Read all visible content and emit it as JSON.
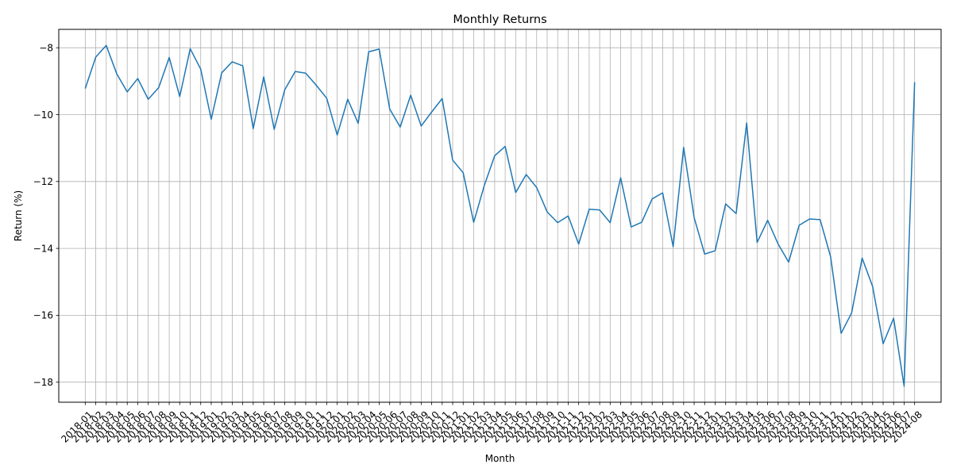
{
  "chart_data": {
    "type": "line",
    "title": "Monthly Returns",
    "xlabel": "Month",
    "ylabel": "Return (%)",
    "grid": true,
    "ylim": [
      -18.6,
      -7.45
    ],
    "yticks": [
      -18,
      -16,
      -14,
      -12,
      -10,
      -8
    ],
    "ytick_labels": [
      "−18",
      "−16",
      "−14",
      "−12",
      "−10",
      "−8"
    ],
    "x_tick_rotation": 45,
    "line_color": "#1f77b4",
    "grid_color": "#b0b0b0",
    "x": [
      "2018-01",
      "2018-02",
      "2018-03",
      "2018-04",
      "2018-05",
      "2018-06",
      "2018-07",
      "2018-08",
      "2018-09",
      "2018-10",
      "2018-11",
      "2018-12",
      "2019-01",
      "2019-02",
      "2019-03",
      "2019-04",
      "2019-05",
      "2019-06",
      "2019-07",
      "2019-08",
      "2019-09",
      "2019-10",
      "2019-11",
      "2019-12",
      "2020-01",
      "2020-02",
      "2020-03",
      "2020-04",
      "2020-05",
      "2020-06",
      "2020-07",
      "2020-08",
      "2020-09",
      "2020-10",
      "2020-11",
      "2020-12",
      "2021-01",
      "2021-02",
      "2021-03",
      "2021-04",
      "2021-05",
      "2021-06",
      "2021-07",
      "2021-08",
      "2021-09",
      "2021-10",
      "2021-11",
      "2021-12",
      "2022-01",
      "2022-02",
      "2022-03",
      "2022-04",
      "2022-05",
      "2022-06",
      "2022-07",
      "2022-08",
      "2022-09",
      "2022-10",
      "2022-11",
      "2022-12",
      "2023-01",
      "2023-02",
      "2023-03",
      "2023-04",
      "2023-05",
      "2023-06",
      "2023-07",
      "2023-08",
      "2023-09",
      "2023-10",
      "2023-11",
      "2023-12",
      "2024-01",
      "2024-02",
      "2024-03",
      "2024-04",
      "2024-05",
      "2024-06",
      "2024-07",
      "2024-08"
    ],
    "x_tick_labels": [
      "2018-01",
      "2018-02",
      "2018-03",
      "2018-04",
      "2018-05",
      "2018-06",
      "2018-07",
      "2018-08",
      "2018-09",
      "2018-10",
      "2018-11",
      "2018-12",
      "2019-01",
      "2019-02",
      "2019-03",
      "2019-04",
      "2019-05",
      "2019-06",
      "2019-07",
      "2019-08",
      "2019-09",
      "2019-10",
      "2019-11",
      "2019-12",
      "2020-01",
      "2020-02",
      "2020-03",
      "2020-04",
      "2020-05",
      "2020-06",
      "2020-07",
      "2020-08",
      "2020-09",
      "2020-10",
      "2020-11",
      "2020-12",
      "2021-01",
      "2021-02",
      "2021-03",
      "2021-04",
      "2021-05",
      "2021-06",
      "2021-07",
      "2021-08",
      "2021-09",
      "2021-10",
      "2021-11",
      "2021-12",
      "2022-01",
      "2022-02",
      "2022-03",
      "2022-04",
      "2022-05",
      "2022-06",
      "2022-07",
      "2022-08",
      "2022-09",
      "2022-10",
      "2022-11",
      "2022-12",
      "2023-01",
      "2023-02",
      "2023-03",
      "2023-04",
      "2023-05",
      "2023-06",
      "2023-07",
      "2023-08",
      "2023-09",
      "2023-10",
      "2023-11",
      "2023-12",
      "2024-01",
      "2024-02",
      "2024-03",
      "2024-04",
      "2024-05",
      "2024-06",
      "2024-07",
      "2024-08"
    ],
    "values": [
      -9.22,
      -8.28,
      -7.93,
      -8.78,
      -9.32,
      -8.92,
      -9.54,
      -9.19,
      -8.29,
      -9.46,
      -8.03,
      -8.64,
      -10.14,
      -8.75,
      -8.42,
      -8.54,
      -10.42,
      -8.87,
      -10.44,
      -9.26,
      -8.71,
      -8.76,
      -9.12,
      -9.51,
      -10.61,
      -9.54,
      -10.26,
      -8.12,
      -8.04,
      -9.83,
      -10.37,
      -9.42,
      -10.34,
      -9.92,
      -9.52,
      -11.36,
      -11.74,
      -13.22,
      -12.13,
      -11.23,
      -10.95,
      -12.33,
      -11.79,
      -12.18,
      -12.91,
      -13.23,
      -13.03,
      -13.87,
      -12.83,
      -12.85,
      -13.23,
      -11.89,
      -13.36,
      -13.22,
      -12.52,
      -12.34,
      -13.95,
      -10.98,
      -13.08,
      -14.17,
      -14.07,
      -12.67,
      -12.96,
      -10.25,
      -13.82,
      -13.16,
      -13.87,
      -14.41,
      -13.31,
      -13.12,
      -13.14,
      -14.25,
      -16.54,
      -15.93,
      -14.29,
      -15.14,
      -16.85,
      -16.09,
      -18.12,
      -9.03
    ]
  }
}
